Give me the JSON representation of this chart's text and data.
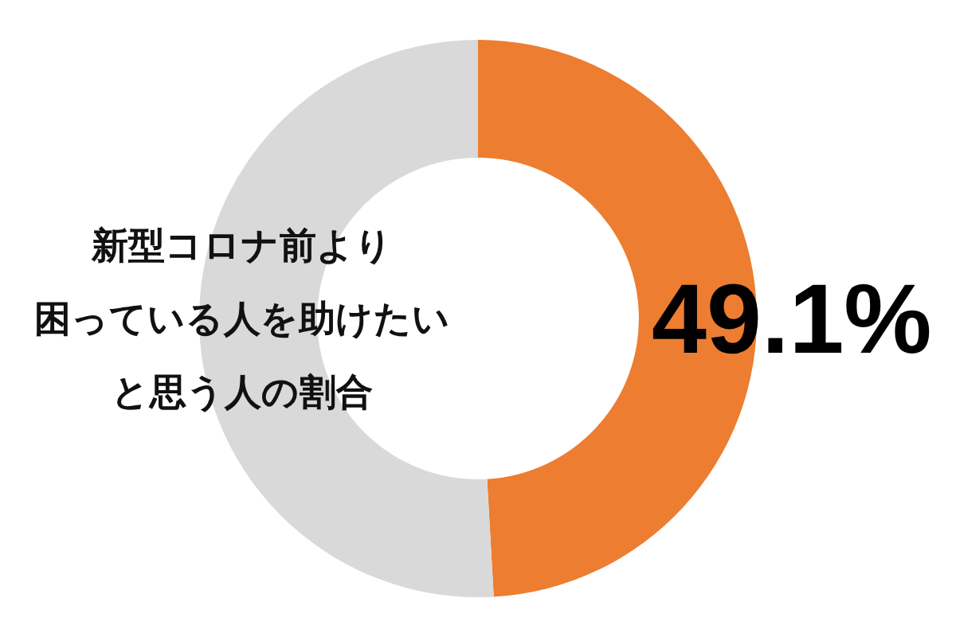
{
  "chart_data": {
    "type": "donut",
    "title": "新型コロナ前より困っている人を助けたいと思う人の割合",
    "categories": [
      null,
      null
    ],
    "values": [
      49.1,
      50.9
    ],
    "colors": [
      "#ed7d31",
      "#d9d9d9"
    ],
    "value_labels": [
      "49.1%",
      null
    ]
  }
}
